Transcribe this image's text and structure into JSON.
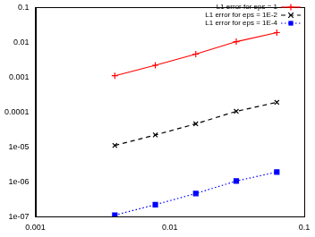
{
  "chart_data": {
    "type": "line",
    "x": [
      0.0039,
      0.0078,
      0.0156,
      0.0312,
      0.0625
    ],
    "series": [
      {
        "name": "L1 error for eps = 1",
        "color": "#ff0000",
        "marker": "plus",
        "line_style": "solid",
        "values": [
          0.0011,
          0.0022,
          0.0046,
          0.0105,
          0.019
        ]
      },
      {
        "name": "L1 error for eps = 1E-2",
        "color": "#000000",
        "marker": "x",
        "line_style": "dashed",
        "values": [
          1.1e-05,
          2.2e-05,
          4.6e-05,
          0.000105,
          0.00019
        ]
      },
      {
        "name": "L1 error for eps = 1E-4",
        "color": "#0000ff",
        "marker": "square",
        "line_style": "dotted",
        "values": [
          1.1e-07,
          2.2e-07,
          4.6e-07,
          1.05e-06,
          1.9e-06
        ]
      }
    ],
    "xlim": [
      0.001,
      0.1
    ],
    "xticks": [
      0.001,
      0.01,
      0.1
    ],
    "ylim": [
      1e-07,
      0.1
    ],
    "yticks": [
      {
        "value": 1e-07,
        "label": "1e-07"
      },
      {
        "value": 1e-06,
        "label": "1e-06"
      },
      {
        "value": 1e-05,
        "label": "1e-05"
      },
      0.0001,
      0.001,
      0.01,
      0.1
    ],
    "log": true,
    "grid": false,
    "legend": "upper right"
  }
}
